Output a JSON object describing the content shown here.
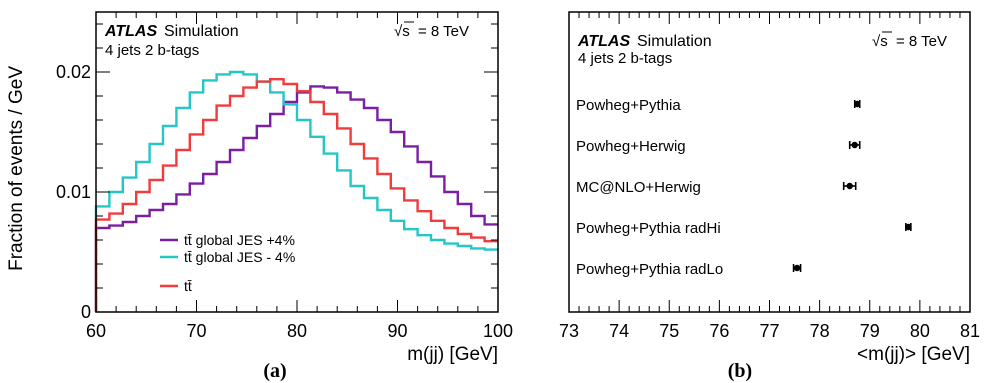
{
  "chart_data": [
    {
      "type": "line",
      "panel_label": "(a)",
      "ylabel": "Fraction of events / GeV",
      "xlabel": "m(jj) [GeV]",
      "xlim": [
        60,
        100
      ],
      "ylim": [
        0,
        0.025
      ],
      "x_ticks": [
        "60",
        "70",
        "80",
        "90",
        "100"
      ],
      "y_ticks": [
        "0",
        "0.01",
        "0.02"
      ],
      "experiment": "ATLAS",
      "experiment_label": "Simulation",
      "energy": "= 8 TeV",
      "selection": "4 jets 2 b-tags",
      "legend_position": "lower-left",
      "bin_edges": [
        60,
        61.33,
        62.67,
        64,
        65.33,
        66.67,
        68,
        69.33,
        70.67,
        72,
        73.33,
        74.67,
        76,
        77.33,
        78.67,
        80,
        81.33,
        82.67,
        84,
        85.33,
        86.67,
        88,
        89.33,
        90.67,
        92,
        93.33,
        94.67,
        96,
        97.33,
        98.67,
        100
      ],
      "series": [
        {
          "name": "tt̄ global JES +4%",
          "color": "#7b1fa2",
          "values": [
            0.007,
            0.0072,
            0.0075,
            0.008,
            0.0085,
            0.009,
            0.0098,
            0.0107,
            0.0115,
            0.0125,
            0.0135,
            0.0145,
            0.0155,
            0.0165,
            0.0175,
            0.0183,
            0.0188,
            0.0187,
            0.0183,
            0.0177,
            0.017,
            0.016,
            0.015,
            0.0138,
            0.0125,
            0.0113,
            0.01,
            0.009,
            0.008,
            0.0073
          ]
        },
        {
          "name": "tt̄ global JES - 4%",
          "color": "#26c6c6",
          "values": [
            0.0088,
            0.01,
            0.0112,
            0.0125,
            0.014,
            0.0155,
            0.017,
            0.0183,
            0.0193,
            0.0198,
            0.02,
            0.0198,
            0.0192,
            0.0183,
            0.0173,
            0.016,
            0.0146,
            0.0132,
            0.0118,
            0.0105,
            0.0095,
            0.0085,
            0.0076,
            0.0069,
            0.0064,
            0.006,
            0.0057,
            0.0055,
            0.0053,
            0.0052
          ]
        },
        {
          "name": "tt̄",
          "color": "#f03c3c",
          "values": [
            0.0077,
            0.0082,
            0.009,
            0.01,
            0.011,
            0.0122,
            0.0135,
            0.0148,
            0.016,
            0.0172,
            0.018,
            0.0187,
            0.0192,
            0.0194,
            0.019,
            0.0184,
            0.0175,
            0.0165,
            0.0153,
            0.014,
            0.0128,
            0.0115,
            0.0103,
            0.0093,
            0.0084,
            0.0076,
            0.007,
            0.0065,
            0.0062,
            0.0059
          ]
        }
      ]
    },
    {
      "type": "scatter",
      "panel_label": "(b)",
      "xlabel": "<m(jj)> [GeV]",
      "xlim": [
        73,
        81
      ],
      "x_ticks": [
        "73",
        "74",
        "75",
        "76",
        "77",
        "78",
        "79",
        "80",
        "81"
      ],
      "experiment": "ATLAS",
      "experiment_label": "Simulation",
      "energy": "= 8 TeV",
      "selection": "4 jets 2 b-tags",
      "points": [
        {
          "label": "Powheg+Pythia",
          "value": 78.75,
          "err": 0.05
        },
        {
          "label": "Powheg+Herwig",
          "value": 78.7,
          "err": 0.1
        },
        {
          "label": "MC@NLO+Herwig",
          "value": 78.6,
          "err": 0.12
        },
        {
          "label": "Powheg+Pythia radHi",
          "value": 79.77,
          "err": 0.05
        },
        {
          "label": "Powheg+Pythia radLo",
          "value": 77.55,
          "err": 0.07
        }
      ]
    }
  ]
}
